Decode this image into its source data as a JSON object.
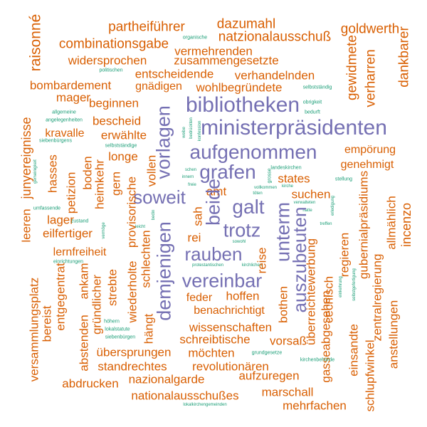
{
  "colors": {
    "large": "#7570b3",
    "medium": "#d95f02",
    "small": "#1b9e77",
    "background": "#ffffff"
  },
  "words": {
    "w001": "raisonné",
    "w002": "partheiführer",
    "w003": "dazumahl",
    "w004": "goldwerth",
    "w005": "combinationsgabe",
    "w006": "organische",
    "w007": "natzionalausschuß",
    "w008": "gewidmete",
    "w009": "dankbarer",
    "w010": "vermehrenden",
    "w011": "widersprochen",
    "w012": "zusammengesetzte",
    "w013": "politischen",
    "w014": "entscheidende",
    "w015": "verhandelnden",
    "w016": "verharren",
    "w017": "bombardement",
    "w018": "gnädigen",
    "w019": "wohlbegründete",
    "w020": "selbstständig",
    "w021": "mager",
    "w022": "beginnen",
    "w023": "bibliotheken",
    "w024": "obrigkeit",
    "w025": "allgemeine",
    "w026": "bedurft",
    "w027": "angelegenheiten",
    "w028": "bescheid",
    "w029": "ministerpräsidenten",
    "w030": "junyereignisse",
    "w031": "siebenbürgens",
    "w032": "kravalle",
    "w033": "erwählte",
    "w034": "weibe",
    "w035": "bedrückten",
    "w036": "konfession",
    "w037": "selbstständige",
    "w038": "vorlagen",
    "w039": "empörung",
    "w040": "longe",
    "w041": "aufgenommen",
    "w042": "genehmigt",
    "w043": "heimkehr",
    "w044": "schen",
    "w045": "innern",
    "w046": "grafen",
    "w047": "landeskirchen",
    "w048": "grosse",
    "w049": "stellung",
    "w050": "gemeinigkeit",
    "w051": "hasses",
    "w052": "boden",
    "w053": "gern",
    "w054": "vollen",
    "w055": "freie",
    "w056": "states",
    "w057": "gubernialpräsidiums",
    "w058": "vollkommen",
    "w059": "kirche",
    "w060": "amt",
    "w061": "soweit",
    "w062": "töten",
    "w063": "suchen",
    "w064": "petizion",
    "w065": "galt",
    "w066": "verwalteten",
    "w067": "umfassende",
    "w068": "leeren",
    "w069": "provisorische",
    "w070": "beide",
    "w071": "sah",
    "w072": "hatte",
    "w073": "allmählich",
    "w074": "incenzo",
    "w075": "lager",
    "w076": "zustand",
    "w077": "bedin",
    "w078": "unterm",
    "w079": "erledigung",
    "w080": "eilfertiger",
    "w081": "vermöge",
    "w082": "leicht",
    "w083": "trotz",
    "w084": "treffen",
    "w085": "rei",
    "w086": "demjenigen",
    "w087": "sowohl",
    "w088": "auszubeuten",
    "w089": "regieren",
    "w090": "lernfreiheit",
    "w091": "rauben",
    "w092": "einrichtungen",
    "w093": "protestantischen",
    "w094": "kirchlichen",
    "w095": "reise",
    "w096": "überreichtewerbung",
    "w097": "versammlungsplatz",
    "w098": "wiederholte",
    "w099": "ankam",
    "w100": "schlechten",
    "w101": "vereinbar",
    "w102": "entgegentrat",
    "w103": "einkehrung",
    "w104": "selbstgefertigung",
    "w105": "strebte",
    "w106": "feder",
    "w107": "hoffen",
    "w108": "zentralregierung",
    "w109": "cechisch",
    "w110": "bereist",
    "w111": "gründlicher",
    "w112": "benachrichtigt",
    "w113": "bothen",
    "w114": "anstellungen",
    "w115": "abstenden",
    "w116": "höhern",
    "w117": "lokalstatute",
    "w118": "wissenschaften",
    "w119": "siebenbürgen",
    "w120": "hängt",
    "w121": "schreibtische",
    "w122": "vorsaß",
    "w123": "gasseabgesehen",
    "w124": "einsandte",
    "w125": "übersprungen",
    "w126": "möchten",
    "w127": "grundgesetze",
    "w128": "schlupfwinkel",
    "w129": "standrechtes",
    "w130": "revolutionären",
    "w131": "kirchenbehörde",
    "w132": "nazionalgarde",
    "w133": "aufzuregen",
    "w134": "abdrucken",
    "w135": "nationalausschußes",
    "w136": "marschall",
    "w137": "lokalkirchengemeinden",
    "w138": "mehrfachen"
  }
}
